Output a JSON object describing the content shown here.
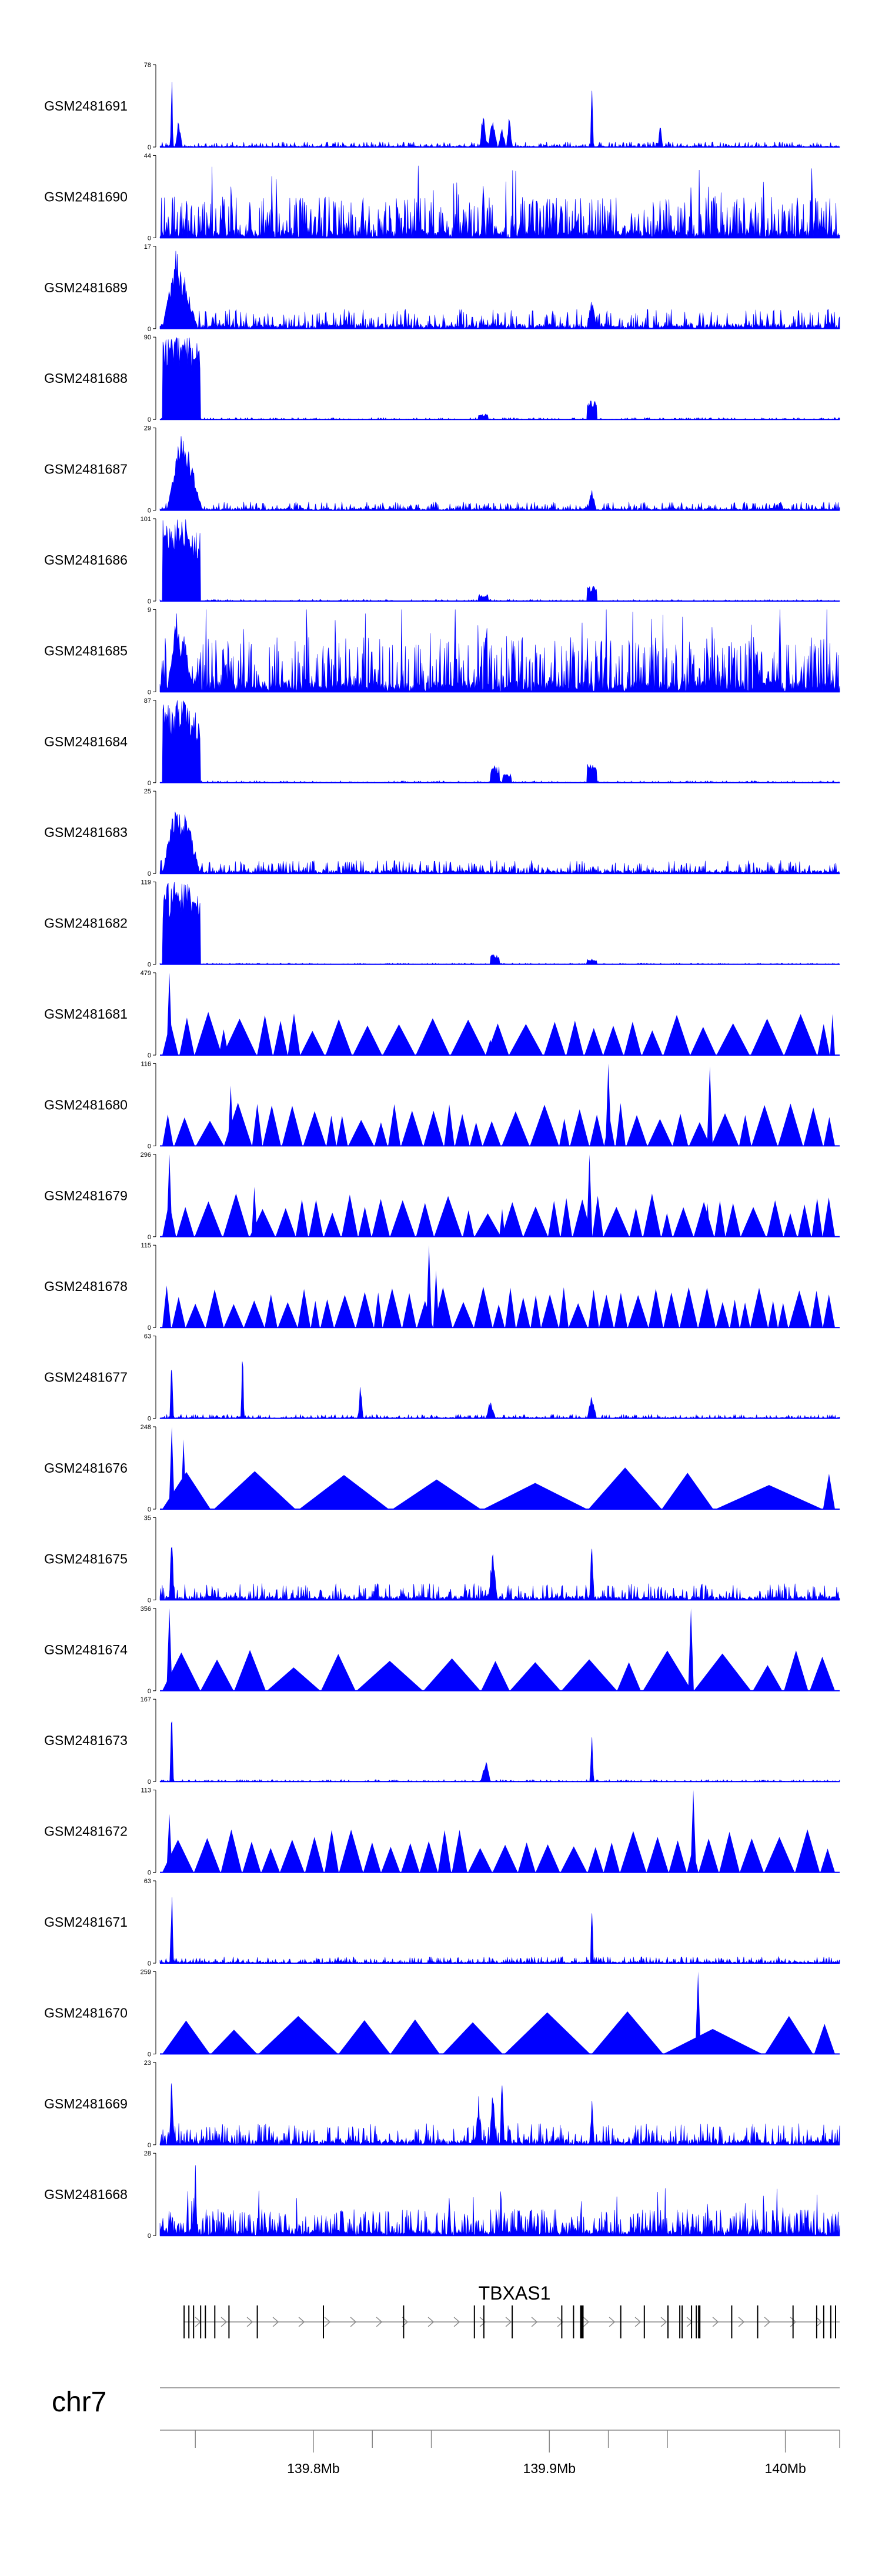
{
  "chart_data": {
    "type": "area",
    "title": "",
    "fill_color": "#0000ff",
    "x_range": [
      139.735,
      140.023
    ],
    "x_unit": "Mb",
    "tracks": [
      {
        "name": "GSM2481691",
        "ymax": 78,
        "style": "spiky",
        "peaks": [
          [
            139.74,
            78,
            0.0006
          ],
          [
            139.743,
            30,
            0.0015
          ],
          [
            139.872,
            42,
            0.0015
          ],
          [
            139.876,
            30,
            0.002
          ],
          [
            139.88,
            22,
            0.0015
          ],
          [
            139.883,
            33,
            0.0012
          ],
          [
            139.918,
            74,
            0.0006
          ],
          [
            139.947,
            24,
            0.001
          ]
        ],
        "noise": 5
      },
      {
        "name": "GSM2481690",
        "ymax": 44,
        "style": "dense",
        "peaks": [
          [
            139.762,
            25,
            0.001
          ],
          [
            139.96,
            44,
            0.0005
          ],
          [
            139.872,
            32,
            0.001
          ],
          [
            139.905,
            30,
            0.001
          ]
        ],
        "noise": 22
      },
      {
        "name": "GSM2481689",
        "ymax": 17,
        "style": "spiky",
        "peaks": [
          [
            139.742,
            17,
            0.006
          ],
          [
            139.745,
            12,
            0.006
          ],
          [
            139.918,
            7,
            0.002
          ]
        ],
        "noise": 4
      },
      {
        "name": "GSM2481688",
        "ymax": 90,
        "style": "block",
        "peaks": [
          [
            139.742,
            90,
            0.006
          ],
          [
            139.746,
            85,
            0.006
          ],
          [
            139.872,
            6,
            0.002
          ],
          [
            139.918,
            22,
            0.002
          ]
        ],
        "noise": 2
      },
      {
        "name": "GSM2481687",
        "ymax": 29,
        "style": "spiky",
        "peaks": [
          [
            139.744,
            29,
            0.006
          ],
          [
            139.747,
            22,
            0.006
          ],
          [
            139.918,
            8,
            0.002
          ]
        ],
        "noise": 3
      },
      {
        "name": "GSM2481686",
        "ymax": 101,
        "style": "block",
        "peaks": [
          [
            139.742,
            101,
            0.006
          ],
          [
            139.746,
            88,
            0.006
          ],
          [
            139.872,
            8,
            0.002
          ],
          [
            139.918,
            20,
            0.002
          ]
        ],
        "noise": 2
      },
      {
        "name": "GSM2481685",
        "ymax": 9,
        "style": "dense",
        "peaks": [
          [
            139.742,
            9,
            0.004
          ],
          [
            139.745,
            7,
            0.004
          ]
        ],
        "noise": 6
      },
      {
        "name": "GSM2481684",
        "ymax": 87,
        "style": "block",
        "peaks": [
          [
            139.742,
            87,
            0.006
          ],
          [
            139.746,
            75,
            0.006
          ],
          [
            139.877,
            18,
            0.002
          ],
          [
            139.882,
            10,
            0.002
          ],
          [
            139.918,
            22,
            0.002
          ]
        ],
        "noise": 2
      },
      {
        "name": "GSM2481683",
        "ymax": 25,
        "style": "spiky",
        "peaks": [
          [
            139.742,
            25,
            0.006
          ],
          [
            139.746,
            20,
            0.006
          ]
        ],
        "noise": 4
      },
      {
        "name": "GSM2481682",
        "ymax": 119,
        "style": "block",
        "peaks": [
          [
            139.742,
            119,
            0.006
          ],
          [
            139.746,
            100,
            0.006
          ],
          [
            139.877,
            15,
            0.002
          ],
          [
            139.918,
            8,
            0.002
          ]
        ],
        "noise": 2
      },
      {
        "name": "GSM2481681",
        "ymax": 479,
        "style": "sparse",
        "peaks": [
          [
            139.739,
            479,
            0.0006
          ],
          [
            139.762,
            150,
            0.002
          ],
          [
            139.875,
            90,
            0.002
          ],
          [
            139.918,
            60,
            0.002
          ]
        ],
        "tri_count": 28
      },
      {
        "name": "GSM2481680",
        "ymax": 116,
        "style": "sparse",
        "peaks": [
          [
            139.765,
            85,
            0.001
          ],
          [
            139.925,
            116,
            0.0008
          ],
          [
            139.968,
            112,
            0.001
          ]
        ],
        "tri_count": 34
      },
      {
        "name": "GSM2481679",
        "ymax": 296,
        "style": "sparse",
        "peaks": [
          [
            139.739,
            296,
            0.0006
          ],
          [
            139.775,
            180,
            0.001
          ],
          [
            139.88,
            100,
            0.001
          ],
          [
            139.917,
            296,
            0.0006
          ],
          [
            139.967,
            120,
            0.001
          ]
        ],
        "tri_count": 36
      },
      {
        "name": "GSM2481678",
        "ymax": 115,
        "style": "sparse",
        "peaks": [
          [
            139.849,
            115,
            0.001
          ],
          [
            139.852,
            80,
            0.001
          ]
        ],
        "tri_count": 46
      },
      {
        "name": "GSM2481677",
        "ymax": 63,
        "style": "spiky",
        "peaks": [
          [
            139.74,
            63,
            0.0008
          ],
          [
            139.77,
            63,
            0.0006
          ],
          [
            139.82,
            30,
            0.001
          ],
          [
            139.875,
            15,
            0.002
          ],
          [
            139.918,
            20,
            0.002
          ]
        ],
        "noise": 3
      },
      {
        "name": "GSM2481676",
        "ymax": 248,
        "style": "sparse",
        "peaks": [
          [
            139.74,
            248,
            0.0008
          ],
          [
            139.745,
            210,
            0.0008
          ]
        ],
        "tri_count": 9
      },
      {
        "name": "GSM2481675",
        "ymax": 35,
        "style": "spiky",
        "peaks": [
          [
            139.74,
            35,
            0.001
          ],
          [
            139.918,
            30,
            0.001
          ],
          [
            139.876,
            22,
            0.002
          ]
        ],
        "noise": 7
      },
      {
        "name": "GSM2481674",
        "ymax": 356,
        "style": "sparse",
        "peaks": [
          [
            139.739,
            356,
            0.0008
          ],
          [
            139.96,
            356,
            0.0008
          ]
        ],
        "tri_count": 15
      },
      {
        "name": "GSM2481673",
        "ymax": 167,
        "style": "spiky",
        "peaks": [
          [
            139.74,
            167,
            0.0008
          ],
          [
            139.873,
            50,
            0.002
          ],
          [
            139.918,
            120,
            0.0008
          ]
        ],
        "noise": 4
      },
      {
        "name": "GSM2481672",
        "ymax": 113,
        "style": "sparse",
        "peaks": [
          [
            139.961,
            113,
            0.0008
          ],
          [
            139.739,
            80,
            0.001
          ]
        ],
        "tri_count": 32
      },
      {
        "name": "GSM2481671",
        "ymax": 63,
        "style": "spiky",
        "peaks": [
          [
            139.74,
            63,
            0.0008
          ],
          [
            139.918,
            63,
            0.0006
          ]
        ],
        "noise": 5
      },
      {
        "name": "GSM2481670",
        "ymax": 259,
        "style": "sparse",
        "peaks": [
          [
            139.963,
            259,
            0.001
          ]
        ],
        "tri_count": 10
      },
      {
        "name": "GSM2481669",
        "ymax": 23,
        "style": "spiky",
        "peaks": [
          [
            139.74,
            23,
            0.001
          ],
          [
            139.876,
            18,
            0.0015
          ],
          [
            139.87,
            14,
            0.0015
          ],
          [
            139.88,
            23,
            0.001
          ],
          [
            139.918,
            14,
            0.001
          ]
        ],
        "noise": 6
      },
      {
        "name": "GSM2481668",
        "ymax": 28,
        "style": "dense",
        "peaks": [
          [
            139.75,
            28,
            0.0008
          ]
        ],
        "noise": 9
      }
    ],
    "gene": {
      "name": "TBXAS1",
      "start": 139.745,
      "end": 140.023
    },
    "chromosome": "chr7",
    "ticks": [
      {
        "value": 139.8,
        "label": "139.8Mb"
      },
      {
        "value": 139.9,
        "label": "139.9Mb"
      },
      {
        "value": 140.0,
        "label": "140Mb"
      }
    ],
    "minor_ticks": [
      139.75,
      139.85,
      139.95,
      140.0
    ],
    "xlabel": "",
    "ylabel": ""
  }
}
